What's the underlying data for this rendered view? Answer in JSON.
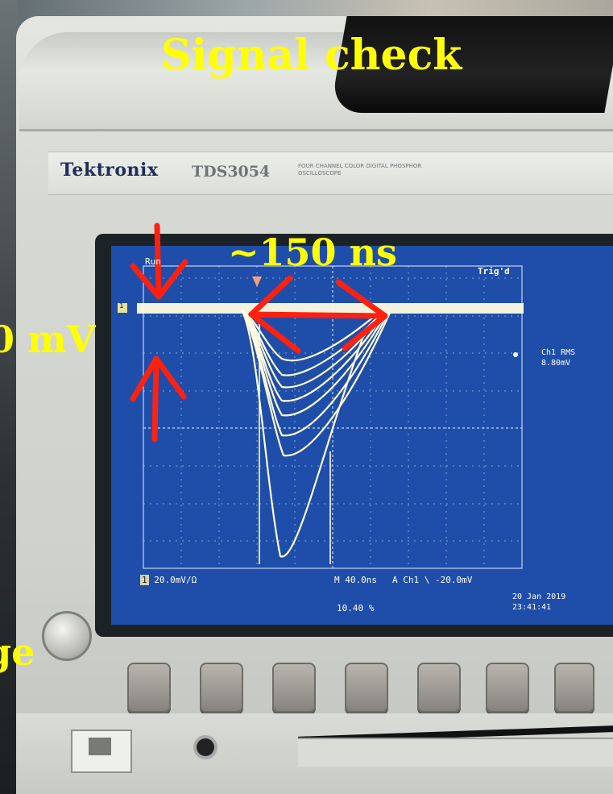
{
  "overlay": {
    "title": "Signal check",
    "pulse_width": "~150 ns",
    "amplitude_fragment": "0 mV",
    "charge_fragment": "ge"
  },
  "scope": {
    "brand": "Tektronix",
    "model": "TDS3054",
    "model_desc": "FOUR CHANNEL COLOR DIGITAL PHOSPHOR OSCILLOSCOPE",
    "status_run": "Run",
    "status_trig": "Trig'd",
    "ch_marker": "1",
    "meas_label": "Ch1 RMS",
    "meas_value": "8.80mV",
    "ch1_scale": "20.0mV/Ω",
    "timebase": "M 40.0ns",
    "trigger": "A  Ch1  \\ -20.0mV",
    "position": "10.40 %",
    "date": "20 Jan  2019",
    "time": "23:41:41"
  },
  "colors": {
    "screen": "#1e4ea9",
    "trace": "#fffbe0",
    "annotation_arrows": "#ff2010",
    "overlay_text": "#ffff00"
  }
}
